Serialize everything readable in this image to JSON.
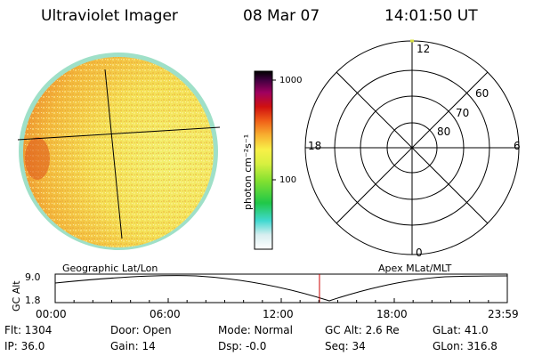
{
  "header": {
    "title": "Ultraviolet Imager",
    "date": "08 Mar 07",
    "time": "14:01:50 UT"
  },
  "colorbar": {
    "label": "photon cm⁻²s⁻¹",
    "tick_high": "1000",
    "tick_low": "100"
  },
  "polar": {
    "mlt_top": "12",
    "mlt_left": "18",
    "mlt_right": "6",
    "mlt_bottom": "0",
    "lat_60": "60",
    "lat_70": "70",
    "lat_80": "80"
  },
  "altitude_plot": {
    "left_title": "Geographic Lat/Lon",
    "right_title": "Apex MLat/MLT",
    "ylabel": "GC Alt",
    "y_top": "9.0",
    "y_bottom": "1.8",
    "x_ticks": [
      "00:00",
      "06:00",
      "12:00",
      "18:00",
      "23:59"
    ],
    "current_time_hours": 14.03
  },
  "info": {
    "flt": "Flt: 1304",
    "ip": "IP: 36.0",
    "door": "Door: Open",
    "gain": "Gain: 14",
    "mode": "Mode: Normal",
    "dsp": "Dsp:   -0.0",
    "gc_alt": "GC Alt: 2.6 Re",
    "seq": "Seq: 34",
    "glat": "GLat:  41.0",
    "glon": "GLon: 316.8"
  },
  "colors": {
    "disk_base": "#f2e65a",
    "disk_edge_glow": "#e85a1a",
    "limb": "#8ed8c0",
    "marker": "#cc0000"
  }
}
